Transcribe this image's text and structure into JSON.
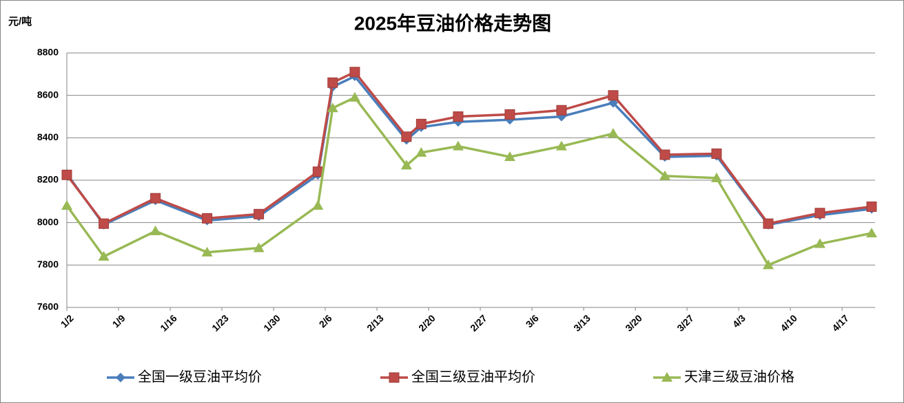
{
  "chart_data": {
    "type": "line",
    "title": "2025年豆油价格走势图",
    "y_label": "元/吨",
    "x": [
      "1/2",
      "1/7",
      "1/14",
      "1/21",
      "1/28",
      "2/5",
      "2/7",
      "2/10",
      "2/17",
      "2/19",
      "2/24",
      "3/3",
      "3/10",
      "3/17",
      "3/24",
      "3/31",
      "4/7",
      "4/14",
      "4/21"
    ],
    "xlim": [
      "1/2",
      "4/21"
    ],
    "xticks": [
      "1/2",
      "1/9",
      "1/16",
      "1/23",
      "1/30",
      "2/6",
      "2/13",
      "2/20",
      "2/27",
      "3/6",
      "3/13",
      "3/20",
      "3/27",
      "4/3",
      "4/10",
      "4/17"
    ],
    "ylim": [
      7600,
      8800
    ],
    "yticks": [
      7600,
      7800,
      8000,
      8200,
      8400,
      8600,
      8800
    ],
    "grid": true,
    "legend": "bottom",
    "series": [
      {
        "name": "全国一级豆油平均价",
        "color": "#4a7ebb",
        "marker": "diamond",
        "values": [
          8230,
          7990,
          8105,
          8010,
          8030,
          8225,
          8640,
          8690,
          8390,
          8450,
          8475,
          8485,
          8500,
          8565,
          8310,
          8315,
          7990,
          8035,
          8065
        ]
      },
      {
        "name": "全国三级豆油平均价",
        "color": "#be4b48",
        "marker": "square",
        "values": [
          8225,
          7995,
          8115,
          8020,
          8040,
          8240,
          8660,
          8710,
          8405,
          8465,
          8500,
          8510,
          8530,
          8600,
          8320,
          8325,
          7995,
          8045,
          8075
        ]
      },
      {
        "name": "天津三级豆油价格",
        "color": "#98b954",
        "marker": "triangle",
        "values": [
          8080,
          7840,
          7960,
          7860,
          7880,
          8080,
          8540,
          8590,
          8270,
          8330,
          8360,
          8310,
          8360,
          8420,
          8220,
          8210,
          7800,
          7900,
          7950
        ]
      }
    ]
  }
}
